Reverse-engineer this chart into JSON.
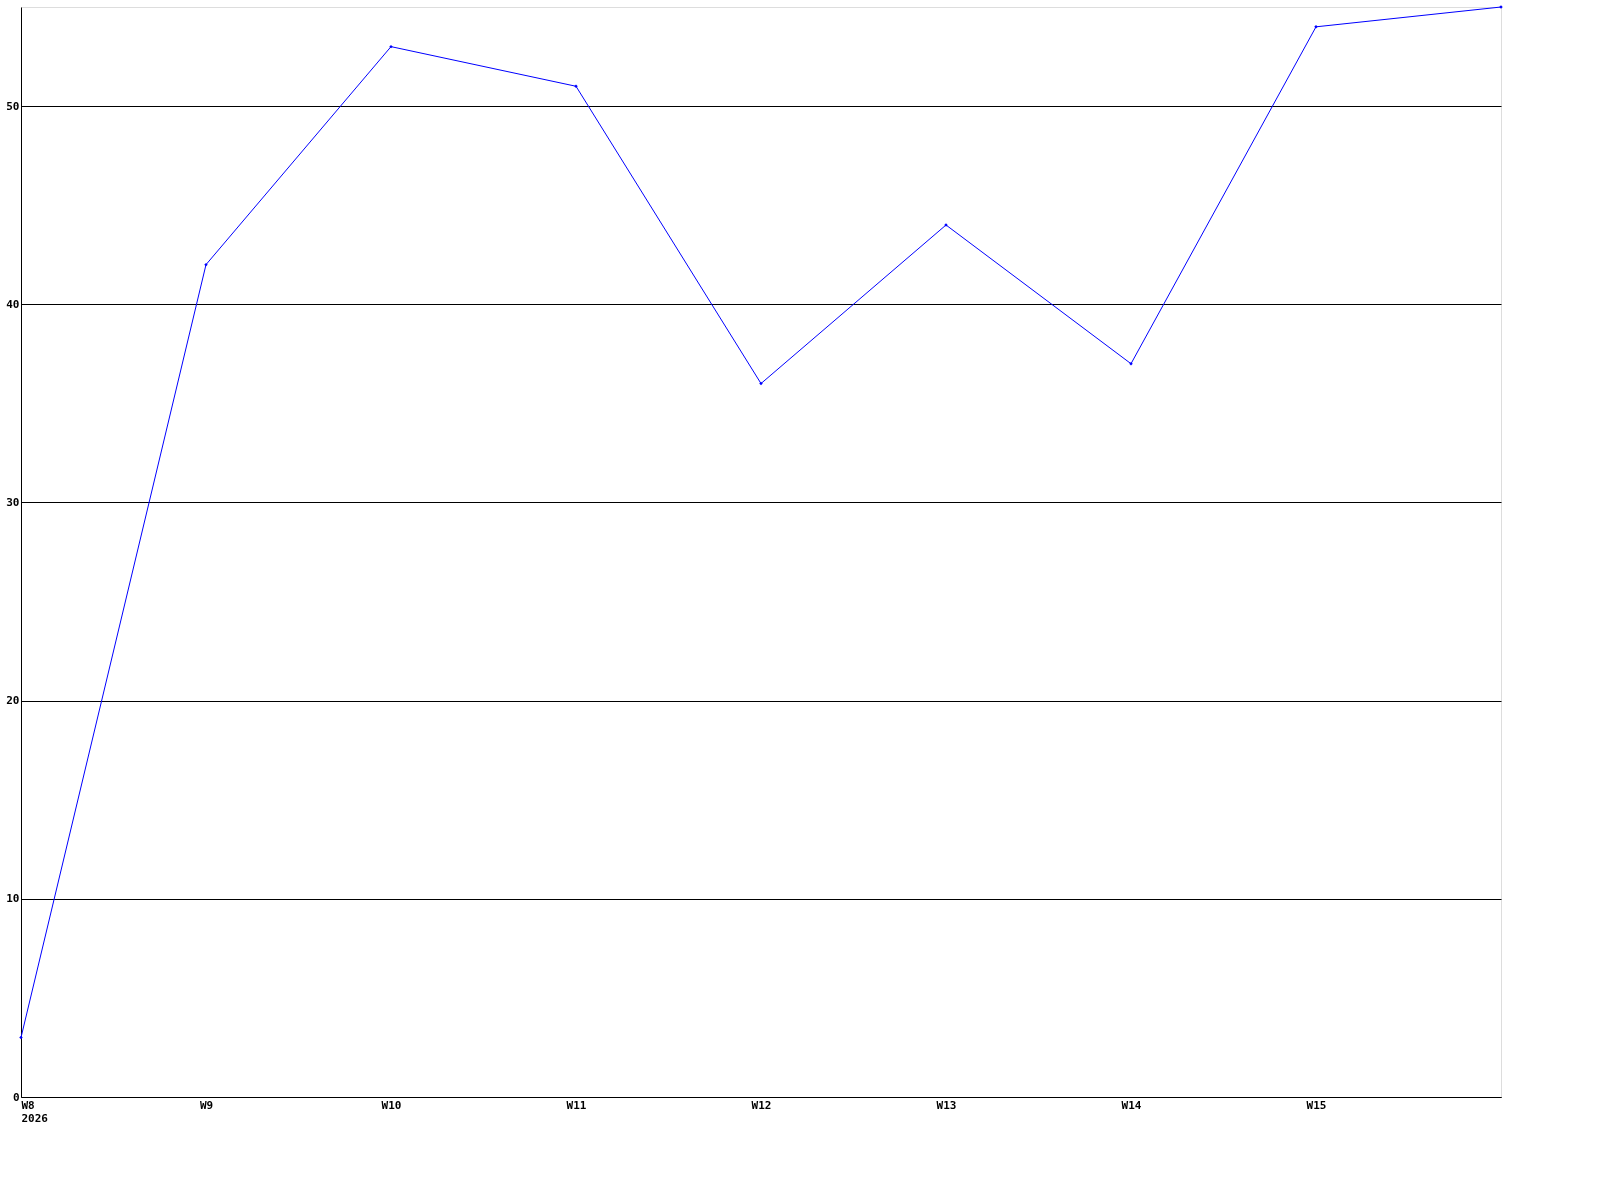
{
  "chart_data": {
    "type": "line",
    "categories": [
      "W8 2026",
      "W9",
      "W10",
      "W11",
      "W12",
      "W13",
      "W14",
      "W15",
      null
    ],
    "series": [
      {
        "color": "#0000ff",
        "values": [
          3,
          42,
          53,
          51,
          36,
          44,
          37,
          54,
          55
        ]
      }
    ],
    "ylim": [
      0,
      55
    ],
    "yticks": [
      0,
      10,
      20,
      30,
      40,
      50
    ],
    "grid": "y",
    "marker": "diamond",
    "line_style": "solid"
  }
}
